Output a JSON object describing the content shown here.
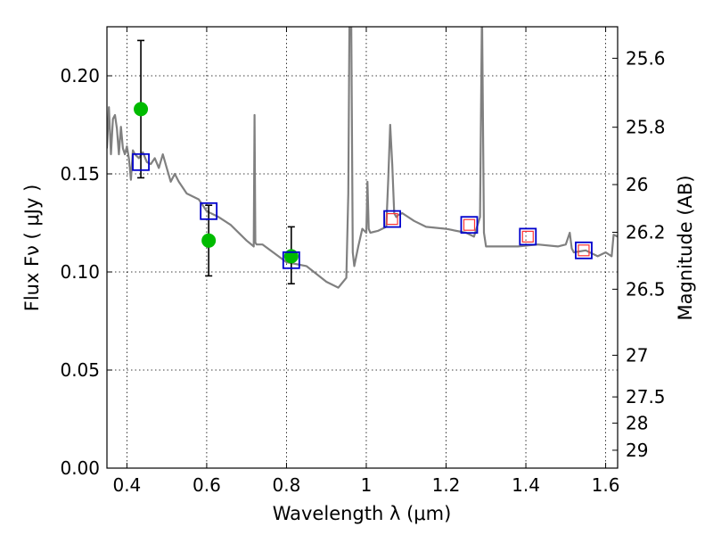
{
  "chart_data": {
    "type": "scatter",
    "xlabel": "Wavelength  λ (μm)",
    "ylabel": "Flux  Fν  ( μJy )",
    "ylabel_right": "Magnitude (AB)",
    "xlim": [
      0.35,
      1.63
    ],
    "ylim": [
      0.0,
      0.225
    ],
    "grid": true,
    "x_ticks": [
      0.4,
      0.6,
      0.8,
      1.0,
      1.2,
      1.4,
      1.6
    ],
    "x_tick_labels": [
      "0.4",
      "0.6",
      "0.8",
      "1",
      "1.2",
      "1.4",
      "1.6"
    ],
    "y_ticks": [
      0.0,
      0.05,
      0.1,
      0.15,
      0.2
    ],
    "y_tick_labels": [
      "0.00",
      "0.05",
      "0.10",
      "0.15",
      "0.20"
    ],
    "right_ticks": [
      {
        "label": "25.6",
        "mag": 25.6
      },
      {
        "label": "25.8",
        "mag": 25.8
      },
      {
        "label": "26",
        "mag": 26.0
      },
      {
        "label": "26.2",
        "mag": 26.2
      },
      {
        "label": "26.5",
        "mag": 26.5
      },
      {
        "label": "27",
        "mag": 27.0
      },
      {
        "label": "27.5",
        "mag": 27.5
      },
      {
        "label": "28",
        "mag": 28.0
      },
      {
        "label": "29",
        "mag": 29.0
      }
    ],
    "series": [
      {
        "type": "line",
        "color": "#808080",
        "x": [
          0.35,
          0.355,
          0.36,
          0.365,
          0.37,
          0.375,
          0.38,
          0.385,
          0.39,
          0.395,
          0.4,
          0.405,
          0.41,
          0.415,
          0.42,
          0.43,
          0.44,
          0.45,
          0.46,
          0.47,
          0.48,
          0.49,
          0.5,
          0.51,
          0.52,
          0.53,
          0.55,
          0.58,
          0.6,
          0.63,
          0.66,
          0.7,
          0.718,
          0.72,
          0.722,
          0.725,
          0.74,
          0.8,
          0.85,
          0.9,
          0.93,
          0.95,
          0.955,
          0.958,
          0.962,
          0.966,
          0.97,
          0.98,
          0.99,
          1.0,
          1.003,
          1.006,
          1.01,
          1.03,
          1.05,
          1.055,
          1.06,
          1.065,
          1.07,
          1.075,
          1.08,
          1.09,
          1.12,
          1.15,
          1.2,
          1.25,
          1.27,
          1.285,
          1.29,
          1.295,
          1.3,
          1.33,
          1.38,
          1.43,
          1.48,
          1.5,
          1.51,
          1.515,
          1.52,
          1.55,
          1.58,
          1.6,
          1.615,
          1.62,
          1.63
        ],
        "y": [
          0.163,
          0.184,
          0.16,
          0.178,
          0.18,
          0.173,
          0.16,
          0.174,
          0.163,
          0.16,
          0.164,
          0.158,
          0.147,
          0.162,
          0.16,
          0.158,
          0.161,
          0.156,
          0.155,
          0.158,
          0.153,
          0.16,
          0.153,
          0.146,
          0.15,
          0.146,
          0.14,
          0.137,
          0.131,
          0.128,
          0.124,
          0.116,
          0.113,
          0.18,
          0.115,
          0.114,
          0.114,
          0.105,
          0.103,
          0.095,
          0.092,
          0.097,
          0.14,
          0.235,
          0.235,
          0.11,
          0.103,
          0.113,
          0.122,
          0.12,
          0.146,
          0.122,
          0.12,
          0.121,
          0.123,
          0.147,
          0.175,
          0.155,
          0.13,
          0.128,
          0.129,
          0.13,
          0.126,
          0.123,
          0.122,
          0.12,
          0.118,
          0.128,
          0.235,
          0.12,
          0.113,
          0.113,
          0.113,
          0.114,
          0.113,
          0.114,
          0.12,
          0.112,
          0.11,
          0.111,
          0.108,
          0.11,
          0.108,
          0.119,
          0.118
        ]
      },
      {
        "type": "scatter",
        "marker": "circle",
        "color": "#00bb00",
        "x": [
          0.435,
          0.605,
          0.812
        ],
        "y": [
          0.183,
          0.116,
          0.108
        ],
        "yerr_low": [
          0.148,
          0.098,
          0.094
        ],
        "yerr_high": [
          0.218,
          0.134,
          0.123
        ]
      },
      {
        "type": "scatter",
        "marker": "square-open",
        "color": "#0000cc",
        "x": [
          0.435,
          0.605,
          0.812,
          1.065,
          1.258,
          1.405,
          1.545
        ],
        "y": [
          0.156,
          0.131,
          0.106,
          0.127,
          0.124,
          0.118,
          0.111
        ]
      },
      {
        "type": "scatter",
        "marker": "square-open-small",
        "color": "#ff3333",
        "x": [
          1.065,
          1.258,
          1.405,
          1.545
        ],
        "y": [
          0.127,
          0.124,
          0.118,
          0.111
        ]
      }
    ]
  }
}
